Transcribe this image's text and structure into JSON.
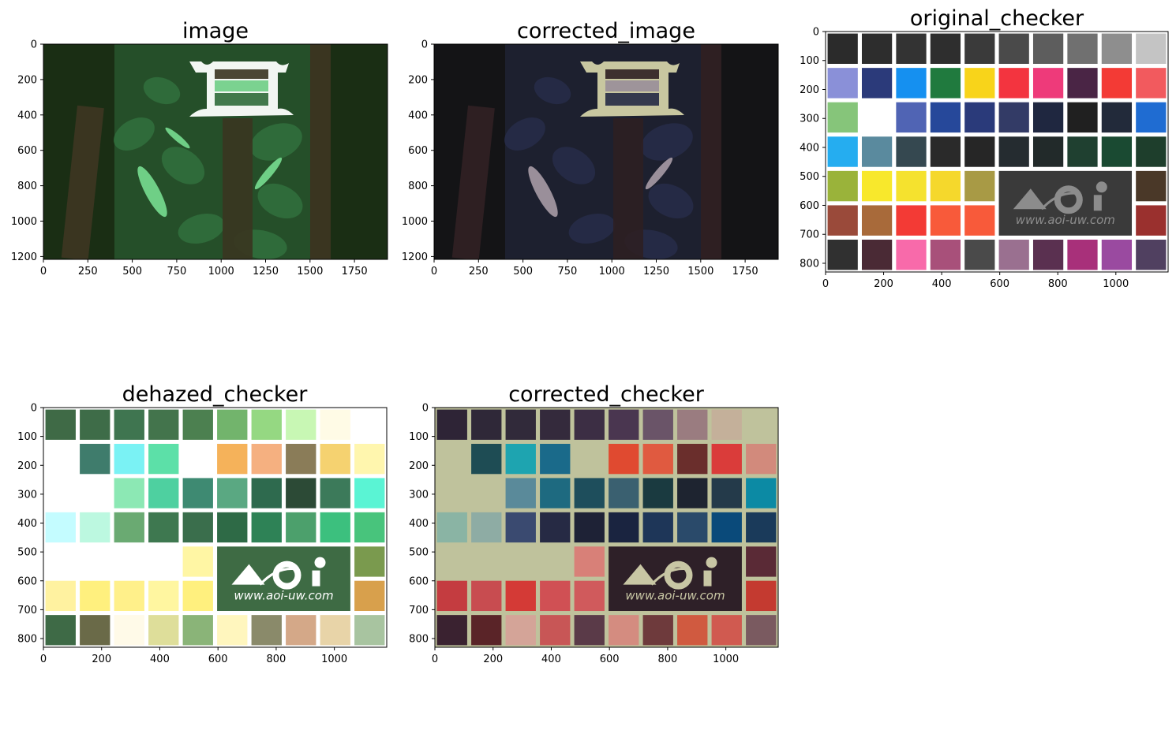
{
  "figure": {
    "background": "#ffffff"
  },
  "chart_data": [
    {
      "type": "image",
      "title": "image",
      "xlim": [
        0,
        1936
      ],
      "ylim": [
        1216,
        0
      ],
      "xticks": [
        0,
        250,
        500,
        750,
        1000,
        1250,
        1500,
        1750
      ],
      "yticks": [
        0,
        200,
        400,
        600,
        800,
        1000,
        1200
      ],
      "content": "underwater-plant-scene",
      "palette": {
        "bg": "#1a2e14",
        "leaf": "#2f6b3a",
        "leaf_light": "#6fcf86",
        "pole": "#3a3520",
        "target": "#f2f6f2"
      }
    },
    {
      "type": "image",
      "title": "corrected_image",
      "xlim": [
        0,
        1936
      ],
      "ylim": [
        1216,
        0
      ],
      "xticks": [
        0,
        250,
        500,
        750,
        1000,
        1250,
        1500,
        1750
      ],
      "yticks": [
        0,
        200,
        400,
        600,
        800,
        1000,
        1200
      ],
      "content": "underwater-plant-scene",
      "palette": {
        "bg": "#141416",
        "leaf": "#252a45",
        "leaf_light": "#9a8f9a",
        "pole": "#2e1f22",
        "target": "#c8c7a0"
      }
    },
    {
      "type": "image",
      "title": "original_checker",
      "xlim": [
        0,
        1180
      ],
      "ylim": [
        830,
        0
      ],
      "xticks": [
        0,
        200,
        400,
        600,
        800,
        1000
      ],
      "yticks": [
        0,
        100,
        200,
        300,
        400,
        500,
        600,
        700,
        800
      ],
      "content": "color-checker",
      "background": "#ffffff",
      "logo_panel": "#3a3a3a",
      "logo_fg": "#8c8c8c",
      "logo_url": "www.aoi-uw.com",
      "rows": [
        [
          "#2b2b2b",
          "#2d2d2d",
          "#333333",
          "#2e2e2e",
          "#3a3a3a",
          "#4a4a4a",
          "#5d5d5d",
          "#707070",
          "#8e8e8e",
          "#c4c4c4"
        ],
        [
          "#8a90d8",
          "#2b3a7a",
          "#1590f0",
          "#207a3e",
          "#f8d41a",
          "#f3343f",
          "#ee3a7a",
          "#4a2545",
          "#f33a35",
          "#f25a5e"
        ],
        [
          "#86c57a",
          "#ffffff",
          "#5064b4",
          "#26489a",
          "#2a3a7a",
          "#333b66",
          "#1f2740",
          "#202020",
          "#222a3a",
          "#1f6cd2"
        ],
        [
          "#25adf0",
          "#5a8a9e",
          "#354850",
          "#2a2a2a",
          "#262626",
          "#252c30",
          "#222a2a",
          "#1f4030",
          "#1a4a32",
          "#1e3e2c"
        ],
        [
          "#9ab33a",
          "#f8e82c",
          "#f5e22e",
          "#f5d82c",
          "#a89a45",
          null,
          null,
          null,
          null,
          "#4a3828"
        ],
        [
          "#9a4a3a",
          "#a86a3a",
          "#f33a35",
          "#f85a3a",
          "#f85a3a",
          null,
          null,
          null,
          null,
          "#9a302e"
        ],
        [
          "#303030",
          "#4a2a35",
          "#f86aaa",
          "#a8507a",
          "#4a4a4a",
          "#9a7090",
          "#5a3050",
          "#a8307a",
          "#9a4aa0",
          "#504060"
        ]
      ]
    },
    {
      "type": "image",
      "title": "dehazed_checker",
      "xlim": [
        0,
        1180
      ],
      "ylim": [
        830,
        0
      ],
      "xticks": [
        0,
        200,
        400,
        600,
        800,
        1000
      ],
      "yticks": [
        0,
        100,
        200,
        300,
        400,
        500,
        600,
        700,
        800
      ],
      "content": "color-checker",
      "background": "#ffffff",
      "logo_panel": "#3e6b44",
      "logo_fg": "#ffffff",
      "logo_url": "www.aoi-uw.com",
      "rows": [
        [
          "#3f6a46",
          "#3e6c48",
          "#3f7550",
          "#43744c",
          "#4c8050",
          "#72b46c",
          "#95d882",
          "#c8f7b4",
          "#fffbe6",
          "#ffffff"
        ],
        [
          "#ffffff",
          "#3f7c6c",
          "#7af2f4",
          "#5ce0a8",
          "#ffffff",
          "#f5b25a",
          "#f5b080",
          "#8a7c58",
          "#f5d270",
          "#fff6ae"
        ],
        [
          "#ffffff",
          "#ffffff",
          "#8ce8b4",
          "#4ed0a0",
          "#3e8a72",
          "#5aa882",
          "#2e6a4e",
          "#2c4a36",
          "#3c7a5a",
          "#5af4d4"
        ],
        [
          "#c4fcff",
          "#bcf8e0",
          "#6aaa72",
          "#3e7850",
          "#3a6e4c",
          "#2e6a46",
          "#2e8256",
          "#4ca06c",
          "#3cc07e",
          "#48c47c"
        ],
        [
          "#ffffff",
          "#ffffff",
          "#ffffff",
          "#ffffff",
          "#fff6a4",
          null,
          null,
          null,
          null,
          "#7a9a4e"
        ],
        [
          "#fff2a0",
          "#fff07e",
          "#fff08a",
          "#fff6a0",
          "#fff07e",
          null,
          null,
          null,
          null,
          "#d8a04c"
        ],
        [
          "#3e6a46",
          "#6a6a48",
          "#fffae8",
          "#dede9a",
          "#8ab478",
          "#fff6be",
          "#8a8a6a",
          "#d4a888",
          "#e8d4a8",
          "#a8c4a0"
        ]
      ]
    },
    {
      "type": "image",
      "title": "corrected_checker",
      "xlim": [
        0,
        1180
      ],
      "ylim": [
        830,
        0
      ],
      "xticks": [
        0,
        200,
        400,
        600,
        800,
        1000
      ],
      "yticks": [
        0,
        100,
        200,
        300,
        400,
        500,
        600,
        700,
        800
      ],
      "content": "color-checker",
      "background": "#bfc29c",
      "logo_panel": "#2e2028",
      "logo_fg": "#c8c6a4",
      "logo_url": "www.aoi-uw.com",
      "rows": [
        [
          "#2e2436",
          "#2f2838",
          "#312a3a",
          "#342a3c",
          "#3c2e44",
          "#4a3650",
          "#6a5468",
          "#9a7c80",
          "#c4b09a",
          "#bfc29c"
        ],
        [
          "#bfc29c",
          "#1e4c54",
          "#1ea4b0",
          "#1a6a8a",
          "#bfc29c",
          "#e04a30",
          "#e05a40",
          "#6a2e2c",
          "#da3c3a",
          "#d28a7c"
        ],
        [
          "#bfc29c",
          "#bfc29c",
          "#5a8a9a",
          "#1e6a80",
          "#1e4e5c",
          "#3a6070",
          "#1a3a40",
          "#1e2430",
          "#243a4a",
          "#0c8aa4"
        ],
        [
          "#8ab4a4",
          "#8eaca4",
          "#3a4a70",
          "#262a44",
          "#1e2236",
          "#1a2440",
          "#1e3658",
          "#2a4a6a",
          "#0a4a7a",
          "#1a3a5a"
        ],
        [
          "#bfc29c",
          "#bfc29c",
          "#bfc29c",
          "#bfc29c",
          "#d88078",
          null,
          null,
          null,
          null,
          "#5a2a36"
        ],
        [
          "#c43c40",
          "#c84c50",
          "#d43a36",
          "#d05054",
          "#d05a5c",
          null,
          null,
          null,
          null,
          "#c43a30"
        ],
        [
          "#3a2230",
          "#5a2428",
          "#d4a498",
          "#c85656",
          "#5a3a48",
          "#d48c80",
          "#6e3a3c",
          "#d05a40",
          "#d05a50",
          "#7a5a60"
        ]
      ]
    }
  ]
}
